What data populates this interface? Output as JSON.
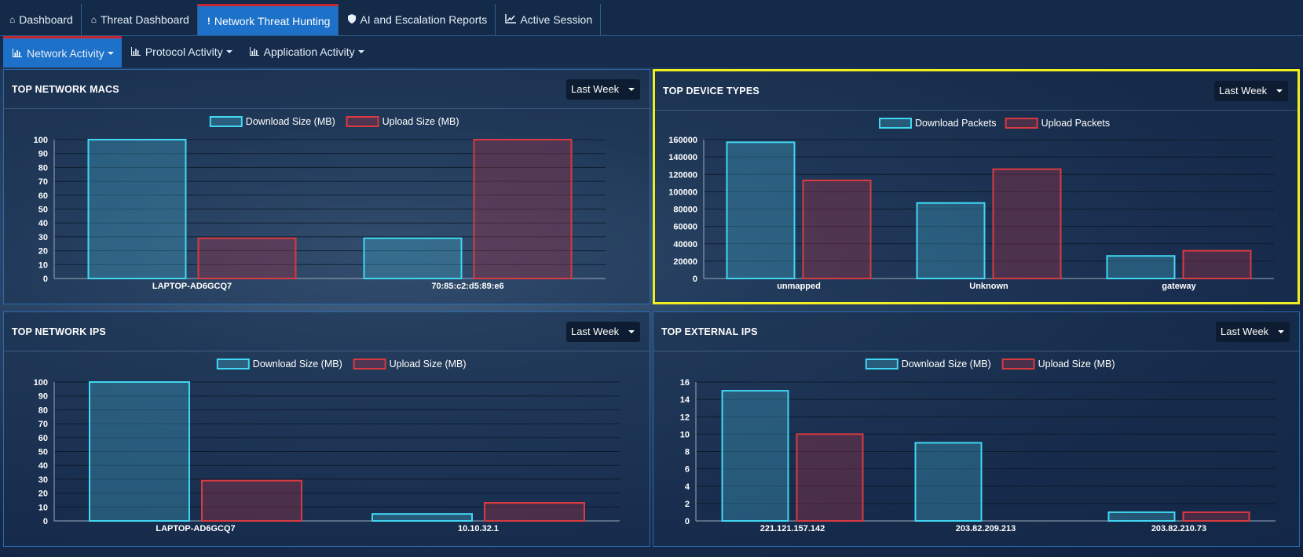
{
  "topnav": {
    "tabs": [
      {
        "label": "Dashboard",
        "icon": "home-icon"
      },
      {
        "label": "Threat Dashboard",
        "icon": "home-icon"
      },
      {
        "label": "Network Threat Hunting",
        "icon": "exclamation-icon"
      },
      {
        "label": "AI and Escalation Reports",
        "icon": "shield-icon"
      },
      {
        "label": "Active Session",
        "icon": "line-chart-icon"
      }
    ],
    "active": "Network Threat Hunting"
  },
  "subnav": {
    "tabs": [
      {
        "label": "Network Activity",
        "icon": "bar-chart-icon"
      },
      {
        "label": "Protocol Activity",
        "icon": "bar-chart-icon"
      },
      {
        "label": "Application Activity",
        "icon": "bar-chart-icon"
      }
    ],
    "active": "Network Activity"
  },
  "colors": {
    "download": "#41d6f2",
    "upload": "#d93a3f",
    "highlight": "#f1ef1f",
    "active_tab": "#1d71c9"
  },
  "panels": {
    "macs": {
      "title": "TOP NETWORK MACS",
      "period": "Last Week"
    },
    "devices": {
      "title": "TOP DEVICE TYPES",
      "period": "Last Week"
    },
    "ips": {
      "title": "TOP NETWORK IPS",
      "period": "Last Week"
    },
    "external": {
      "title": "TOP EXTERNAL IPS",
      "period": "Last Week"
    }
  },
  "chart_data": [
    {
      "type": "bar",
      "title": "TOP NETWORK MACS",
      "categories": [
        "LAPTOP-AD6GCQ7",
        "70:85:c2:d5:89:e6"
      ],
      "series": [
        {
          "name": "Download Size (MB)",
          "values": [
            100,
            29
          ]
        },
        {
          "name": "Upload Size (MB)",
          "values": [
            29,
            100
          ]
        }
      ],
      "yticks": [
        "0",
        "10",
        "20",
        "30",
        "40",
        "50",
        "60",
        "70",
        "80",
        "90",
        "100"
      ],
      "ylim": [
        0,
        100
      ],
      "grid": true,
      "legend": "top-center"
    },
    {
      "type": "bar",
      "title": "TOP DEVICE TYPES",
      "categories": [
        "unmapped",
        "Unknown",
        "gateway"
      ],
      "series": [
        {
          "name": "Download Packets",
          "values": [
            157000,
            87000,
            26000
          ]
        },
        {
          "name": "Upload Packets",
          "values": [
            113000,
            126000,
            32000
          ]
        }
      ],
      "yticks": [
        "0",
        "20000",
        "40000",
        "60000",
        "80000",
        "100000",
        "120000",
        "140000",
        "160000"
      ],
      "ylim": [
        0,
        160000
      ],
      "grid": true,
      "legend": "top-center"
    },
    {
      "type": "bar",
      "title": "TOP NETWORK IPS",
      "categories": [
        "LAPTOP-AD6GCQ7",
        "10.10.32.1"
      ],
      "series": [
        {
          "name": "Download Size (MB)",
          "values": [
            100,
            5
          ]
        },
        {
          "name": "Upload Size (MB)",
          "values": [
            29,
            13
          ]
        }
      ],
      "yticks": [
        "0",
        "10",
        "20",
        "30",
        "40",
        "50",
        "60",
        "70",
        "80",
        "90",
        "100"
      ],
      "ylim": [
        0,
        100
      ],
      "grid": true,
      "legend": "top-center"
    },
    {
      "type": "bar",
      "title": "TOP EXTERNAL IPS",
      "categories": [
        "221.121.157.142",
        "203.82.209.213",
        "203.82.210.73"
      ],
      "series": [
        {
          "name": "Download Size (MB)",
          "values": [
            15,
            9,
            1
          ]
        },
        {
          "name": "Upload Size (MB)",
          "values": [
            10,
            0,
            1
          ]
        }
      ],
      "yticks": [
        "0",
        "2",
        "4",
        "6",
        "8",
        "10",
        "12",
        "14",
        "16"
      ],
      "ylim": [
        0,
        16
      ],
      "grid": true,
      "legend": "top-center"
    }
  ]
}
